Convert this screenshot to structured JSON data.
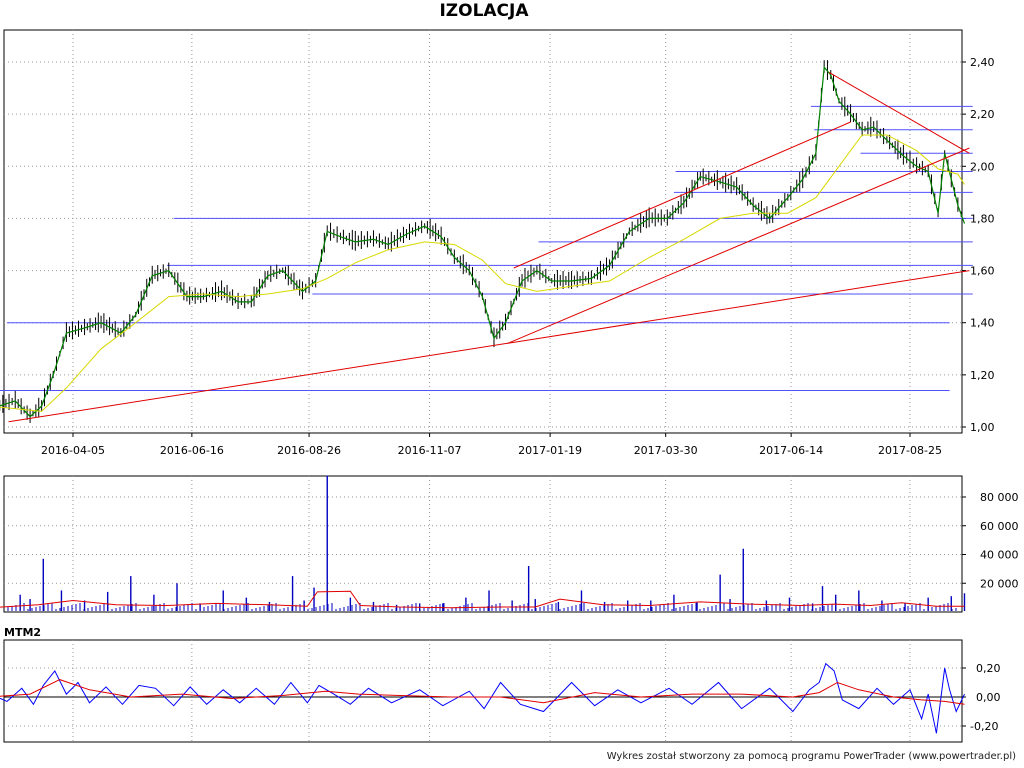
{
  "chart_data": [
    {
      "type": "line",
      "panel": "price",
      "title": "IZOLACJA",
      "x_tick_labels": [
        "2016-04-05",
        "2016-06-16",
        "2016-08-26",
        "2016-11-07",
        "2017-01-19",
        "2017-03-30",
        "2017-06-14",
        "2017-08-25"
      ],
      "y_tick_labels": [
        "1,00",
        "1,20",
        "1,40",
        "1,60",
        "1,80",
        "2,00",
        "2,20",
        "2,40"
      ],
      "ylim": [
        1.0,
        2.5
      ],
      "grid": true,
      "series": [
        {
          "color": "#008000",
          "x": [
            "2016-02-15",
            "2016-03-01",
            "2016-03-10",
            "2016-03-17",
            "2016-03-24",
            "2016-04-01",
            "2016-04-12",
            "2016-04-22",
            "2016-05-04",
            "2016-05-13",
            "2016-05-23",
            "2016-06-02",
            "2016-06-13",
            "2016-06-23",
            "2016-07-04",
            "2016-07-14",
            "2016-07-22",
            "2016-08-01",
            "2016-08-10",
            "2016-08-22",
            "2016-08-30",
            "2016-09-06",
            "2016-09-14",
            "2016-09-23",
            "2016-10-04",
            "2016-10-13",
            "2016-10-24",
            "2016-11-04",
            "2016-11-14",
            "2016-11-22",
            "2016-12-01",
            "2016-12-09",
            "2016-12-16",
            "2016-12-23",
            "2017-01-02",
            "2017-01-11",
            "2017-01-20",
            "2017-02-01",
            "2017-02-13",
            "2017-02-24",
            "2017-03-08",
            "2017-03-20",
            "2017-03-31",
            "2017-04-10",
            "2017-04-20",
            "2017-05-02",
            "2017-05-12",
            "2017-05-22",
            "2017-06-01",
            "2017-06-12",
            "2017-06-21",
            "2017-06-29",
            "2017-07-04",
            "2017-07-08",
            "2017-07-13",
            "2017-07-20",
            "2017-07-27",
            "2017-08-03",
            "2017-08-11",
            "2017-08-21",
            "2017-08-29",
            "2017-09-05",
            "2017-09-11",
            "2017-09-15",
            "2017-09-19",
            "2017-09-23",
            "2017-09-27"
          ],
          "y": [
            1.07,
            1.1,
            1.04,
            1.08,
            1.2,
            1.36,
            1.38,
            1.4,
            1.36,
            1.43,
            1.58,
            1.6,
            1.5,
            1.5,
            1.52,
            1.48,
            1.48,
            1.58,
            1.6,
            1.52,
            1.56,
            1.75,
            1.73,
            1.71,
            1.72,
            1.7,
            1.74,
            1.77,
            1.73,
            1.65,
            1.6,
            1.5,
            1.34,
            1.4,
            1.56,
            1.6,
            1.56,
            1.56,
            1.57,
            1.62,
            1.75,
            1.8,
            1.8,
            1.86,
            1.96,
            1.94,
            1.92,
            1.85,
            1.8,
            1.88,
            1.95,
            2.05,
            2.38,
            2.35,
            2.25,
            2.2,
            2.14,
            2.15,
            2.1,
            2.04,
            2.0,
            1.98,
            1.82,
            2.05,
            1.95,
            1.85,
            1.78
          ]
        },
        {
          "color": "#d8d800",
          "x": [
            "2016-02-15",
            "2016-03-17",
            "2016-04-01",
            "2016-04-22",
            "2016-05-13",
            "2016-06-02",
            "2016-06-23",
            "2016-07-14",
            "2016-08-01",
            "2016-08-22",
            "2016-09-06",
            "2016-09-23",
            "2016-10-13",
            "2016-11-04",
            "2016-11-22",
            "2016-12-09",
            "2016-12-23",
            "2017-01-11",
            "2017-02-01",
            "2017-02-24",
            "2017-03-20",
            "2017-04-10",
            "2017-05-02",
            "2017-05-22",
            "2017-06-12",
            "2017-06-29",
            "2017-07-13",
            "2017-07-27",
            "2017-08-11",
            "2017-08-29",
            "2017-09-11",
            "2017-09-23",
            "2017-09-27"
          ],
          "y": [
            1.08,
            1.06,
            1.15,
            1.3,
            1.4,
            1.5,
            1.51,
            1.5,
            1.51,
            1.53,
            1.57,
            1.63,
            1.68,
            1.71,
            1.7,
            1.64,
            1.55,
            1.52,
            1.54,
            1.56,
            1.65,
            1.72,
            1.8,
            1.82,
            1.82,
            1.88,
            2.0,
            2.12,
            2.12,
            2.06,
            1.99,
            1.97,
            1.93
          ]
        },
        {
          "color": "#e00000",
          "x": [
            "2016-02-26",
            "2017-09-30"
          ],
          "y": [
            1.02,
            1.6
          ]
        },
        {
          "color": "#e00000",
          "x": [
            "2016-12-24",
            "2017-09-30"
          ],
          "y": [
            1.32,
            2.07
          ]
        },
        {
          "color": "#e00000",
          "x": [
            "2016-12-28",
            "2017-07-20"
          ],
          "y": [
            1.61,
            2.17
          ]
        },
        {
          "color": "#e00000",
          "x": [
            "2017-07-07",
            "2017-09-30"
          ],
          "y": [
            2.36,
            2.05
          ]
        }
      ],
      "horizontal_lines": [
        {
          "y": 1.14,
          "from": "2016-02-12",
          "to": "2017-09-18",
          "color": "#5050ff"
        },
        {
          "y": 1.4,
          "from": "2016-02-25",
          "to": "2017-09-18",
          "color": "#5050ff"
        },
        {
          "y": 1.51,
          "from": "2016-08-28",
          "to": "2017-10-02",
          "color": "#5050ff"
        },
        {
          "y": 1.62,
          "from": "2016-06-01",
          "to": "2017-10-02",
          "color": "#5050ff"
        },
        {
          "y": 1.71,
          "from": "2017-01-12",
          "to": "2017-10-02",
          "color": "#5050ff"
        },
        {
          "y": 1.8,
          "from": "2016-06-05",
          "to": "2017-10-02",
          "color": "#5050ff"
        },
        {
          "y": 1.9,
          "from": "2017-04-04",
          "to": "2017-10-02",
          "color": "#5050ff"
        },
        {
          "y": 1.98,
          "from": "2017-04-05",
          "to": "2017-10-02",
          "color": "#5050ff"
        },
        {
          "y": 2.05,
          "from": "2017-07-26",
          "to": "2017-10-02",
          "color": "#5050ff"
        },
        {
          "y": 2.14,
          "from": "2017-06-28",
          "to": "2017-10-02",
          "color": "#5050ff"
        },
        {
          "y": 2.23,
          "from": "2017-06-26",
          "to": "2017-10-02",
          "color": "#5050ff"
        }
      ]
    },
    {
      "type": "bar",
      "panel": "volume",
      "y_tick_labels": [
        "20 000",
        "40 000",
        "60 000",
        "80 000"
      ],
      "ylim": [
        0,
        100000
      ],
      "bar_color": "#0000c0",
      "x": [
        "2016-02-20",
        "2016-03-04",
        "2016-03-10",
        "2016-03-18",
        "2016-03-29",
        "2016-04-12",
        "2016-04-26",
        "2016-05-10",
        "2016-05-24",
        "2016-06-07",
        "2016-06-21",
        "2016-07-05",
        "2016-07-19",
        "2016-08-02",
        "2016-08-16",
        "2016-08-23",
        "2016-08-29",
        "2016-09-06",
        "2016-09-20",
        "2016-10-04",
        "2016-10-18",
        "2016-11-01",
        "2016-11-15",
        "2016-11-29",
        "2016-12-13",
        "2016-12-27",
        "2017-01-06",
        "2017-01-10",
        "2017-01-24",
        "2017-02-07",
        "2017-02-21",
        "2017-03-07",
        "2017-03-21",
        "2017-04-04",
        "2017-04-18",
        "2017-05-02",
        "2017-05-08",
        "2017-05-16",
        "2017-05-30",
        "2017-06-13",
        "2017-06-27",
        "2017-07-03",
        "2017-07-11",
        "2017-07-25",
        "2017-08-08",
        "2017-08-22",
        "2017-09-05",
        "2017-09-19",
        "2017-09-27"
      ],
      "values": [
        5000,
        12000,
        9000,
        37000,
        15000,
        8000,
        14000,
        25000,
        12000,
        20000,
        6000,
        15000,
        10000,
        7000,
        25000,
        8000,
        17000,
        95000,
        10000,
        7000,
        5000,
        6000,
        6000,
        10000,
        15000,
        8000,
        32000,
        9000,
        7000,
        15000,
        7000,
        8000,
        8000,
        12000,
        7000,
        26000,
        9000,
        44000,
        8000,
        10000,
        6000,
        18000,
        12000,
        15000,
        8000,
        6000,
        10000,
        11000,
        13000
      ],
      "series": [
        {
          "color": "#e00000",
          "x": [
            "2016-02-15",
            "2016-03-15",
            "2016-04-05",
            "2016-05-01",
            "2016-06-01",
            "2016-07-01",
            "2016-08-01",
            "2016-08-25",
            "2016-08-31",
            "2016-09-20",
            "2016-09-26",
            "2016-10-20",
            "2016-11-20",
            "2016-12-20",
            "2017-01-10",
            "2017-01-25",
            "2017-02-20",
            "2017-03-20",
            "2017-04-20",
            "2017-05-20",
            "2017-06-20",
            "2017-07-10",
            "2017-08-01",
            "2017-08-20",
            "2017-09-10",
            "2017-09-27"
          ],
          "values": [
            3000,
            5000,
            8000,
            5000,
            4500,
            6000,
            5000,
            4000,
            14000,
            14500,
            4500,
            3500,
            3000,
            3500,
            3500,
            9000,
            5000,
            4500,
            7000,
            5500,
            4500,
            5500,
            4500,
            6500,
            4000,
            4000
          ]
        }
      ]
    },
    {
      "type": "line",
      "panel": "indicator",
      "title": "MTM2",
      "y_tick_labels": [
        "-0,20",
        "0,00",
        "0,20"
      ],
      "ylim": [
        -0.28,
        0.35
      ],
      "series": [
        {
          "color": "#0000ff",
          "x": [
            "2016-02-15",
            "2016-02-25",
            "2016-03-05",
            "2016-03-12",
            "2016-03-18",
            "2016-03-25",
            "2016-04-01",
            "2016-04-08",
            "2016-04-15",
            "2016-04-25",
            "2016-05-05",
            "2016-05-15",
            "2016-05-25",
            "2016-06-05",
            "2016-06-15",
            "2016-06-25",
            "2016-07-05",
            "2016-07-15",
            "2016-07-25",
            "2016-08-05",
            "2016-08-15",
            "2016-08-25",
            "2016-09-01",
            "2016-09-10",
            "2016-09-20",
            "2016-10-01",
            "2016-10-15",
            "2016-11-01",
            "2016-11-15",
            "2016-12-01",
            "2016-12-10",
            "2016-12-20",
            "2017-01-01",
            "2017-01-15",
            "2017-02-01",
            "2017-02-15",
            "2017-03-01",
            "2017-03-15",
            "2017-04-01",
            "2017-04-15",
            "2017-05-01",
            "2017-05-15",
            "2017-06-01",
            "2017-06-15",
            "2017-06-25",
            "2017-07-01",
            "2017-07-05",
            "2017-07-10",
            "2017-07-15",
            "2017-07-25",
            "2017-08-05",
            "2017-08-15",
            "2017-08-25",
            "2017-09-01",
            "2017-09-05",
            "2017-09-10",
            "2017-09-15",
            "2017-09-18",
            "2017-09-22",
            "2017-09-27"
          ],
          "values": [
            0.02,
            -0.03,
            0.06,
            -0.05,
            0.08,
            0.18,
            0.02,
            0.1,
            -0.04,
            0.07,
            -0.05,
            0.08,
            0.06,
            -0.06,
            0.07,
            -0.05,
            0.05,
            -0.04,
            0.06,
            -0.05,
            0.1,
            -0.04,
            0.08,
            0.02,
            -0.05,
            0.06,
            -0.04,
            0.05,
            -0.06,
            0.04,
            -0.08,
            0.1,
            -0.05,
            -0.1,
            0.1,
            -0.06,
            0.05,
            -0.04,
            0.06,
            -0.05,
            0.1,
            -0.08,
            0.06,
            -0.1,
            0.05,
            0.1,
            0.23,
            0.18,
            -0.02,
            -0.08,
            0.06,
            -0.05,
            0.05,
            -0.15,
            0.02,
            -0.25,
            0.2,
            0.05,
            -0.1,
            0.02
          ]
        },
        {
          "color": "#e00000",
          "x": [
            "2016-02-15",
            "2016-03-10",
            "2016-03-28",
            "2016-04-15",
            "2016-05-10",
            "2016-06-10",
            "2016-07-10",
            "2016-08-10",
            "2016-09-05",
            "2016-09-25",
            "2016-10-20",
            "2016-11-20",
            "2016-12-20",
            "2017-01-15",
            "2017-02-15",
            "2017-03-15",
            "2017-04-15",
            "2017-05-15",
            "2017-06-15",
            "2017-07-01",
            "2017-07-12",
            "2017-07-25",
            "2017-08-15",
            "2017-09-01",
            "2017-09-15",
            "2017-09-27"
          ],
          "values": [
            0.0,
            0.02,
            0.12,
            0.05,
            0.0,
            0.02,
            -0.01,
            0.01,
            0.04,
            0.02,
            0.01,
            0.0,
            0.0,
            -0.04,
            0.03,
            0.0,
            0.02,
            0.02,
            0.0,
            0.03,
            0.1,
            0.05,
            0.0,
            -0.02,
            -0.03,
            -0.05
          ]
        }
      ]
    }
  ],
  "footer": "Wykres został stworzony za pomocą programu PowerTrader (www.powertrader.pl)"
}
